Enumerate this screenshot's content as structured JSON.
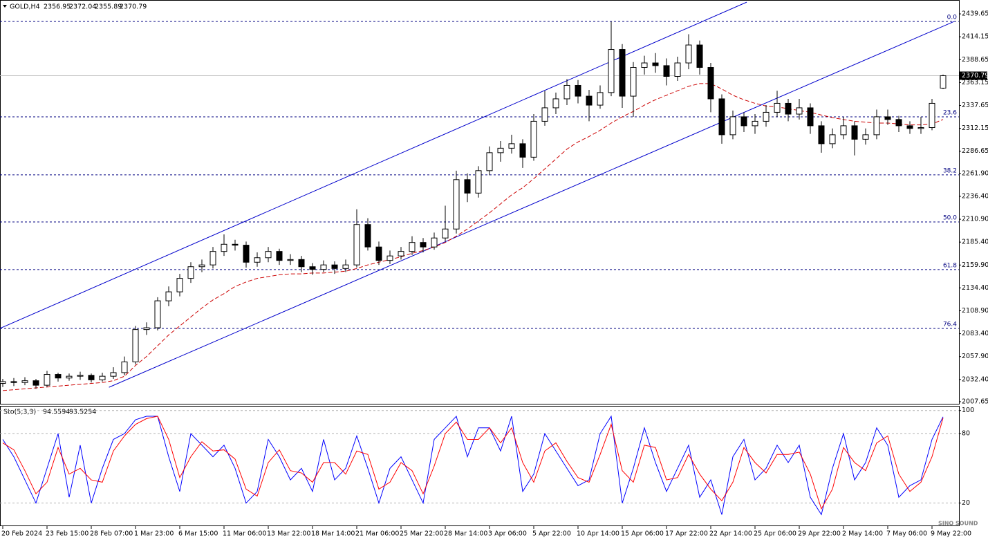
{
  "watermark": "SINO SOUND",
  "chart_data": [
    {
      "type": "candlestick",
      "title": "GOLD,H4",
      "categories": [
        "20 Feb 2024",
        null,
        null,
        null,
        "23 Feb 15:00",
        null,
        null,
        null,
        "28 Feb 07:00",
        null,
        null,
        null,
        "1 Mar 23:00",
        null,
        null,
        null,
        "6 Mar 15:00",
        null,
        null,
        null,
        "11 Mar 06:00",
        null,
        null,
        null,
        "13 Mar 22:00",
        null,
        null,
        null,
        "18 Mar 14:00",
        null,
        null,
        null,
        "21 Mar 06:00",
        null,
        null,
        null,
        "25 Mar 22:00",
        null,
        null,
        null,
        "28 Mar 14:00",
        null,
        null,
        null,
        "3 Apr 06:00",
        null,
        null,
        null,
        "5 Apr 22:00",
        null,
        null,
        null,
        "10 Apr 14:00",
        null,
        null,
        null,
        "15 Apr 06:00",
        null,
        null,
        null,
        "17 Apr 22:00",
        null,
        null,
        null,
        "22 Apr 14:00",
        null,
        null,
        null,
        "25 Apr 06:00",
        null,
        null,
        null,
        "29 Apr 22:00",
        null,
        null,
        null,
        "2 May 14:00",
        null,
        null,
        null,
        "7 May 06:00",
        null,
        null,
        null,
        "9 May 22:00",
        null
      ],
      "ohlc": [
        [
          2028,
          2033,
          2024,
          2030
        ],
        [
          2030,
          2034,
          2025,
          2029
        ],
        [
          2029,
          2035,
          2026,
          2031
        ],
        [
          2031,
          2033,
          2022,
          2026
        ],
        [
          2026,
          2042,
          2024,
          2038
        ],
        [
          2038,
          2040,
          2030,
          2034
        ],
        [
          2034,
          2039,
          2031,
          2036
        ],
        [
          2036,
          2041,
          2032,
          2037
        ],
        [
          2037,
          2039,
          2029,
          2032
        ],
        [
          2032,
          2040,
          2030,
          2036
        ],
        [
          2036,
          2046,
          2033,
          2040
        ],
        [
          2040,
          2058,
          2037,
          2052
        ],
        [
          2052,
          2092,
          2049,
          2088
        ],
        [
          2088,
          2096,
          2082,
          2090
        ],
        [
          2090,
          2124,
          2087,
          2120
        ],
        [
          2120,
          2136,
          2114,
          2130
        ],
        [
          2130,
          2150,
          2125,
          2145
        ],
        [
          2145,
          2163,
          2140,
          2158
        ],
        [
          2158,
          2166,
          2152,
          2160
        ],
        [
          2160,
          2180,
          2156,
          2175
        ],
        [
          2175,
          2194,
          2170,
          2183
        ],
        [
          2183,
          2188,
          2176,
          2182
        ],
        [
          2182,
          2186,
          2157,
          2163
        ],
        [
          2163,
          2174,
          2158,
          2168
        ],
        [
          2168,
          2180,
          2163,
          2175
        ],
        [
          2175,
          2178,
          2160,
          2165
        ],
        [
          2165,
          2172,
          2160,
          2166
        ],
        [
          2166,
          2170,
          2152,
          2158
        ],
        [
          2158,
          2162,
          2149,
          2155
        ],
        [
          2155,
          2165,
          2152,
          2160
        ],
        [
          2160,
          2164,
          2150,
          2156
        ],
        [
          2156,
          2166,
          2152,
          2160
        ],
        [
          2160,
          2222,
          2157,
          2205
        ],
        [
          2205,
          2212,
          2176,
          2180
        ],
        [
          2180,
          2186,
          2160,
          2165
        ],
        [
          2165,
          2176,
          2161,
          2170
        ],
        [
          2170,
          2180,
          2166,
          2175
        ],
        [
          2175,
          2192,
          2171,
          2185
        ],
        [
          2185,
          2190,
          2174,
          2180
        ],
        [
          2180,
          2196,
          2177,
          2190
        ],
        [
          2190,
          2226,
          2186,
          2200
        ],
        [
          2200,
          2265,
          2195,
          2255
        ],
        [
          2255,
          2262,
          2230,
          2240
        ],
        [
          2240,
          2270,
          2235,
          2265
        ],
        [
          2265,
          2292,
          2260,
          2285
        ],
        [
          2285,
          2298,
          2275,
          2290
        ],
        [
          2290,
          2305,
          2284,
          2295
        ],
        [
          2295,
          2300,
          2268,
          2280
        ],
        [
          2280,
          2328,
          2276,
          2320
        ],
        [
          2320,
          2354,
          2315,
          2335
        ],
        [
          2335,
          2352,
          2328,
          2345
        ],
        [
          2345,
          2367,
          2338,
          2360
        ],
        [
          2360,
          2366,
          2340,
          2348
        ],
        [
          2348,
          2355,
          2320,
          2338
        ],
        [
          2338,
          2360,
          2334,
          2352
        ],
        [
          2352,
          2431,
          2348,
          2400
        ],
        [
          2400,
          2406,
          2335,
          2348
        ],
        [
          2348,
          2386,
          2325,
          2380
        ],
        [
          2380,
          2393,
          2372,
          2385
        ],
        [
          2385,
          2396,
          2374,
          2382
        ],
        [
          2382,
          2390,
          2360,
          2370
        ],
        [
          2370,
          2392,
          2365,
          2385
        ],
        [
          2385,
          2417,
          2378,
          2405
        ],
        [
          2405,
          2410,
          2372,
          2380
        ],
        [
          2380,
          2385,
          2330,
          2345
        ],
        [
          2345,
          2350,
          2295,
          2305
        ],
        [
          2305,
          2332,
          2300,
          2325
        ],
        [
          2325,
          2330,
          2308,
          2315
        ],
        [
          2315,
          2328,
          2306,
          2320
        ],
        [
          2320,
          2338,
          2314,
          2330
        ],
        [
          2330,
          2354,
          2325,
          2340
        ],
        [
          2340,
          2345,
          2320,
          2328
        ],
        [
          2328,
          2345,
          2322,
          2335
        ],
        [
          2335,
          2340,
          2306,
          2315
        ],
        [
          2315,
          2320,
          2285,
          2295
        ],
        [
          2295,
          2312,
          2290,
          2305
        ],
        [
          2305,
          2325,
          2300,
          2315
        ],
        [
          2315,
          2320,
          2282,
          2300
        ],
        [
          2300,
          2312,
          2294,
          2305
        ],
        [
          2305,
          2333,
          2300,
          2325
        ],
        [
          2325,
          2333,
          2316,
          2322
        ],
        [
          2322,
          2326,
          2308,
          2315
        ],
        [
          2315,
          2320,
          2306,
          2312
        ],
        [
          2312,
          2325,
          2306,
          2313
        ],
        [
          2313,
          2345,
          2310,
          2340
        ],
        [
          2356.95,
          2372.04,
          2355.89,
          2370.79
        ]
      ],
      "ma": {
        "color": "#cc0000",
        "values": [
          2020,
          2021,
          2022,
          2023,
          2024,
          2025,
          2026,
          2027,
          2028,
          2029,
          2031,
          2036,
          2048,
          2058,
          2070,
          2082,
          2092,
          2102,
          2112,
          2121,
          2128,
          2136,
          2141,
          2145,
          2147,
          2149,
          2150,
          2150,
          2151,
          2151,
          2152,
          2153,
          2156,
          2160,
          2163,
          2166,
          2169,
          2173,
          2176,
          2180,
          2185,
          2192,
          2200,
          2209,
          2218,
          2228,
          2238,
          2246,
          2256,
          2267,
          2278,
          2289,
          2297,
          2303,
          2310,
          2318,
          2325,
          2331,
          2338,
          2344,
          2349,
          2354,
          2359,
          2362,
          2362,
          2356,
          2349,
          2344,
          2340,
          2337,
          2336,
          2334,
          2332,
          2330,
          2327,
          2324,
          2322,
          2320,
          2319,
          2318,
          2318,
          2317,
          2316,
          2316,
          2317,
          2322
        ]
      },
      "channel_color": "#0000cc",
      "trendlines": [
        {
          "x": [
            -0.25,
            67.25
          ],
          "y": [
            2089.3,
            2452.7
          ]
        },
        {
          "x": [
            9.6,
            86
          ],
          "y": [
            2023.7,
            2431.2
          ]
        }
      ],
      "fib_labels": [
        "0.0",
        "23.6",
        "38.2",
        "50.0",
        "61.8",
        "76.4"
      ],
      "fib_prices": [
        2431.2,
        2324.9,
        2260.3,
        2207.9,
        2154.8,
        2089.3
      ],
      "ylim": [
        2005.3,
        2452.8
      ],
      "yticks": [
        2439.65,
        2414.15,
        2388.65,
        2363.15,
        2337.65,
        2312.15,
        2286.65,
        {
          "value": 2261.9,
          "label": "2261.90"
        },
        {
          "value": 2236.4,
          "label": "2236.40"
        },
        {
          "value": 2210.9,
          "label": "2210.90"
        },
        {
          "value": 2185.4,
          "label": "2185.40"
        },
        {
          "value": 2159.9,
          "label": "2159.90"
        },
        {
          "value": 2134.4,
          "label": "2134.40"
        },
        {
          "value": 2108.9,
          "label": "2108.90"
        },
        {
          "value": 2083.4,
          "label": "2083.40"
        },
        {
          "value": 2057.9,
          "label": "2057.90"
        },
        {
          "value": 2032.4,
          "label": "2032.40"
        },
        2007.65
      ]
    },
    {
      "type": "line",
      "title": "Sto(5,3,3)",
      "series": [
        {
          "color": "#0000ff",
          "values": [
            75,
            60,
            40,
            20,
            50,
            80,
            25,
            70,
            20,
            50,
            75,
            80,
            92,
            95,
            95,
            60,
            30,
            80,
            70,
            60,
            70,
            50,
            20,
            30,
            75,
            60,
            40,
            50,
            30,
            75,
            40,
            50,
            78,
            50,
            20,
            50,
            60,
            40,
            20,
            75,
            85,
            95,
            60,
            85,
            85,
            65,
            95,
            30,
            45,
            80,
            65,
            50,
            35,
            40,
            80,
            95,
            20,
            50,
            85,
            55,
            30,
            50,
            70,
            25,
            40,
            10,
            60,
            75,
            40,
            50,
            70,
            55,
            70,
            25,
            10,
            50,
            80,
            40,
            55,
            85,
            70,
            25,
            35,
            40,
            75,
            94.5594
          ]
        },
        {
          "color": "#ff0000",
          "values": [
            72,
            66,
            48,
            28,
            38,
            68,
            45,
            50,
            40,
            38,
            65,
            78,
            88,
            93,
            95,
            75,
            42,
            60,
            73,
            65,
            66,
            58,
            32,
            26,
            55,
            66,
            48,
            46,
            38,
            55,
            55,
            45,
            65,
            62,
            32,
            38,
            55,
            48,
            28,
            52,
            80,
            90,
            75,
            75,
            85,
            72,
            85,
            55,
            38,
            65,
            72,
            56,
            42,
            38,
            62,
            88,
            48,
            38,
            70,
            68,
            40,
            42,
            62,
            45,
            32,
            22,
            38,
            68,
            55,
            46,
            62,
            62,
            64,
            45,
            15,
            32,
            68,
            55,
            48,
            72,
            78,
            45,
            30,
            38,
            60,
            93.5254
          ]
        }
      ],
      "ylim": [
        0,
        104
      ],
      "yticks": [
        100,
        80,
        20
      ],
      "grid": true
    }
  ]
}
